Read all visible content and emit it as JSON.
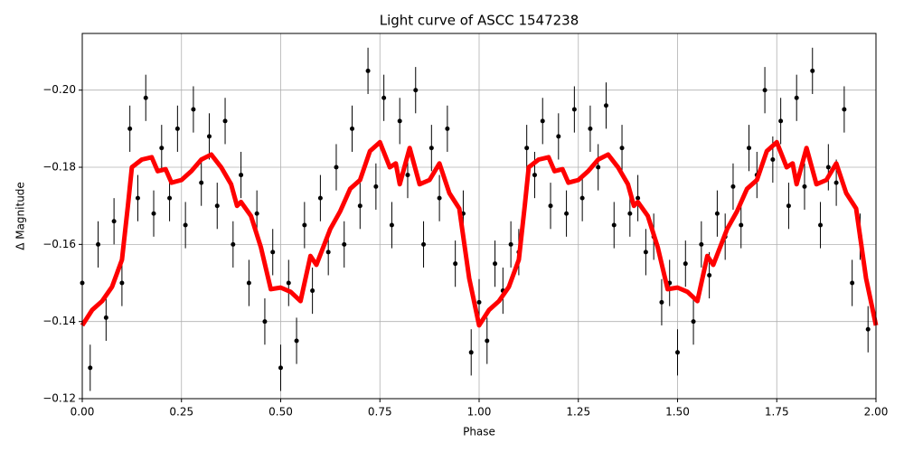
{
  "chart_data": {
    "type": "scatter",
    "title": "Light curve of ASCC 1547238",
    "xlabel": "Phase",
    "ylabel": "Δ Magnitude",
    "xlim": [
      0,
      2
    ],
    "ylim": [
      -0.12,
      -0.2147
    ],
    "xticks": [
      {
        "value": 0,
        "label": "0.00"
      },
      {
        "value": 0.25,
        "label": "0.25"
      },
      {
        "value": 0.5,
        "label": "0.50"
      },
      {
        "value": 0.75,
        "label": "0.75"
      },
      {
        "value": 1,
        "label": "1.00"
      },
      {
        "value": 1.25,
        "label": "1.25"
      },
      {
        "value": 1.5,
        "label": "1.50"
      },
      {
        "value": 1.75,
        "label": "1.75"
      },
      {
        "value": 2,
        "label": "2.00"
      }
    ],
    "yticks": [
      {
        "value": -0.2,
        "label": "−0.20"
      },
      {
        "value": -0.18,
        "label": "−0.18"
      },
      {
        "value": -0.16,
        "label": "−0.16"
      },
      {
        "value": -0.14,
        "label": "−0.14"
      },
      {
        "value": -0.12,
        "label": "−0.12"
      }
    ],
    "grid": true,
    "points": {
      "color": "#000000",
      "yerr": 0.006,
      "x": [
        0.0,
        0.02,
        0.04,
        0.06,
        0.08,
        0.1,
        0.12,
        0.14,
        0.16,
        0.18,
        0.2,
        0.22,
        0.24,
        0.26,
        0.28,
        0.3,
        0.32,
        0.34,
        0.36,
        0.38,
        0.4,
        0.42,
        0.44,
        0.46,
        0.48,
        0.5,
        0.52,
        0.54,
        0.56,
        0.58,
        0.6,
        0.62,
        0.64,
        0.66,
        0.68,
        0.7,
        0.72,
        0.74,
        0.76,
        0.78,
        0.8,
        0.82,
        0.84,
        0.86,
        0.88,
        0.9,
        0.92,
        0.94,
        0.96,
        0.98,
        1.0,
        1.02,
        1.04,
        1.06,
        1.08,
        1.1,
        1.12,
        1.14,
        1.16,
        1.18,
        1.2,
        1.22,
        1.24,
        1.26,
        1.28,
        1.3,
        1.32,
        1.34,
        1.36,
        1.38,
        1.4,
        1.42,
        1.44,
        1.46,
        1.48,
        1.5,
        1.52,
        1.54,
        1.56,
        1.58,
        1.6,
        1.62,
        1.64,
        1.66,
        1.68,
        1.7,
        1.72,
        1.74,
        1.76,
        1.78,
        1.8,
        1.82,
        1.84,
        1.86,
        1.88,
        1.9,
        1.92,
        1.94,
        1.96,
        1.98
      ],
      "values": [
        -0.15,
        -0.128,
        -0.16,
        -0.141,
        -0.166,
        -0.15,
        -0.19,
        -0.172,
        -0.198,
        -0.168,
        -0.185,
        -0.172,
        -0.19,
        -0.165,
        -0.195,
        -0.176,
        -0.188,
        -0.17,
        -0.192,
        -0.16,
        -0.178,
        -0.15,
        -0.168,
        -0.14,
        -0.158,
        -0.128,
        -0.15,
        -0.135,
        -0.165,
        -0.148,
        -0.172,
        -0.158,
        -0.18,
        -0.16,
        -0.19,
        -0.17,
        -0.205,
        -0.175,
        -0.198,
        -0.165,
        -0.192,
        -0.178,
        -0.2,
        -0.16,
        -0.185,
        -0.172,
        -0.19,
        -0.155,
        -0.168,
        -0.132,
        -0.145,
        -0.135,
        -0.155,
        -0.148,
        -0.16,
        -0.158,
        -0.185,
        -0.178,
        -0.192,
        -0.17,
        -0.188,
        -0.168,
        -0.195,
        -0.172,
        -0.19,
        -0.18,
        -0.196,
        -0.165,
        -0.185,
        -0.168,
        -0.172,
        -0.158,
        -0.162,
        -0.145,
        -0.15,
        -0.132,
        -0.155,
        -0.14,
        -0.16,
        -0.152,
        -0.168,
        -0.162,
        -0.175,
        -0.165,
        -0.185,
        -0.178,
        -0.2,
        -0.182,
        -0.192,
        -0.17,
        -0.198,
        -0.175,
        -0.205,
        -0.165,
        -0.18,
        -0.176,
        -0.195,
        -0.15,
        -0.162,
        -0.138
      ]
    },
    "series": [
      {
        "color": "#ff0000",
        "x": [
          0.0,
          0.025,
          0.05,
          0.075,
          0.1,
          0.115,
          0.125,
          0.15,
          0.175,
          0.19,
          0.21,
          0.225,
          0.25,
          0.275,
          0.3,
          0.325,
          0.35,
          0.375,
          0.39,
          0.4,
          0.425,
          0.45,
          0.475,
          0.5,
          0.525,
          0.55,
          0.575,
          0.59,
          0.625,
          0.65,
          0.675,
          0.7,
          0.725,
          0.75,
          0.775,
          0.79,
          0.8,
          0.825,
          0.85,
          0.875,
          0.9,
          0.925,
          0.95,
          0.975,
          1.0,
          1.025,
          1.05,
          1.075,
          1.1,
          1.115,
          1.125,
          1.15,
          1.175,
          1.19,
          1.21,
          1.225,
          1.25,
          1.275,
          1.3,
          1.325,
          1.35,
          1.375,
          1.39,
          1.4,
          1.425,
          1.45,
          1.475,
          1.5,
          1.525,
          1.55,
          1.575,
          1.59,
          1.625,
          1.65,
          1.675,
          1.7,
          1.725,
          1.75,
          1.775,
          1.79,
          1.8,
          1.825,
          1.85,
          1.875,
          1.9,
          1.925,
          1.95,
          1.975,
          2.0
        ],
        "values": [
          -0.139,
          -0.143,
          -0.1453,
          -0.149,
          -0.156,
          -0.17,
          -0.18,
          -0.182,
          -0.1826,
          -0.179,
          -0.1795,
          -0.176,
          -0.1767,
          -0.179,
          -0.182,
          -0.1833,
          -0.18,
          -0.1756,
          -0.17,
          -0.171,
          -0.1674,
          -0.1593,
          -0.1484,
          -0.1488,
          -0.1477,
          -0.1453,
          -0.157,
          -0.1547,
          -0.164,
          -0.1686,
          -0.1744,
          -0.1767,
          -0.1842,
          -0.1865,
          -0.18,
          -0.181,
          -0.1756,
          -0.185,
          -0.1756,
          -0.1767,
          -0.181,
          -0.1733,
          -0.1693,
          -0.1512,
          -0.139,
          -0.143,
          -0.1453,
          -0.149,
          -0.156,
          -0.17,
          -0.18,
          -0.182,
          -0.1826,
          -0.179,
          -0.1795,
          -0.176,
          -0.1767,
          -0.179,
          -0.182,
          -0.1833,
          -0.18,
          -0.1756,
          -0.17,
          -0.171,
          -0.1674,
          -0.1593,
          -0.1484,
          -0.1488,
          -0.1477,
          -0.1453,
          -0.157,
          -0.1547,
          -0.164,
          -0.1686,
          -0.1744,
          -0.1767,
          -0.1842,
          -0.1865,
          -0.18,
          -0.181,
          -0.1756,
          -0.185,
          -0.1756,
          -0.1767,
          -0.181,
          -0.1733,
          -0.1693,
          -0.1512,
          -0.139
        ]
      }
    ]
  }
}
